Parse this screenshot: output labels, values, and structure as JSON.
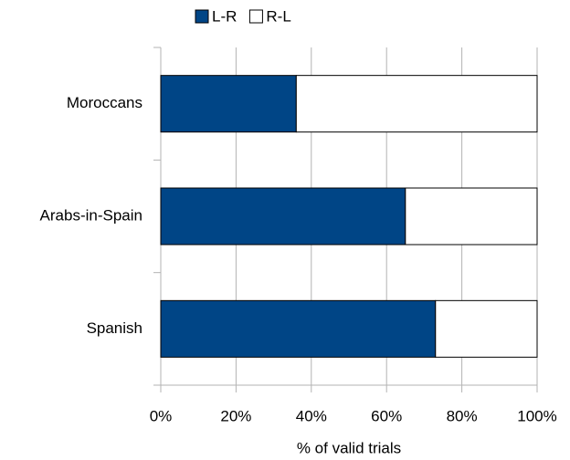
{
  "chart_data": {
    "type": "stacked_barh",
    "xlabel": "% of valid trials",
    "categories": [
      "Moroccans",
      "Arabs-in-Spain",
      "Spanish"
    ],
    "series": [
      {
        "name": "L-R",
        "color": "#004586",
        "values": [
          36,
          65,
          73
        ]
      },
      {
        "name": "R-L",
        "color": "#ffffff",
        "values": [
          64,
          35,
          27
        ]
      }
    ],
    "xlim": [
      0,
      100
    ],
    "xticks": [
      {
        "value": 0,
        "label": "0%"
      },
      {
        "value": 20,
        "label": "20%"
      },
      {
        "value": 40,
        "label": "40%"
      },
      {
        "value": 60,
        "label": "60%"
      },
      {
        "value": 80,
        "label": "80%"
      },
      {
        "value": 100,
        "label": "100%"
      }
    ],
    "grid": true,
    "legend": "top"
  }
}
